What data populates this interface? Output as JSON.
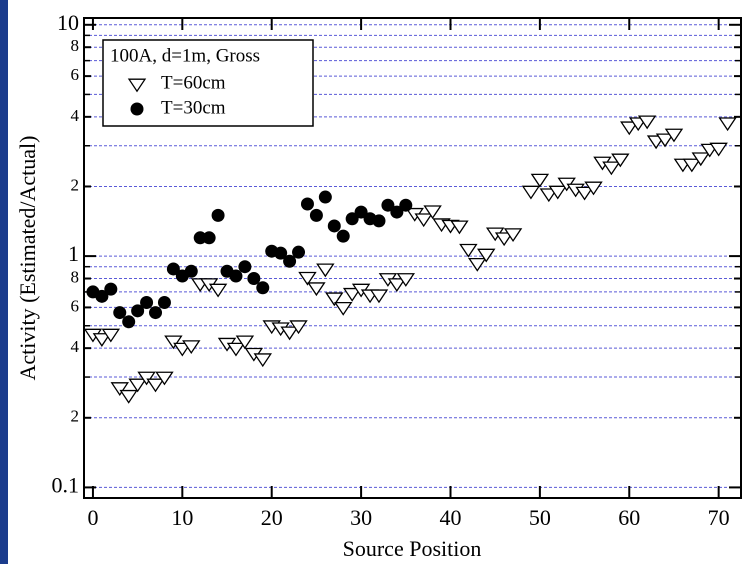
{
  "chart_data": {
    "type": "scatter",
    "xlabel": "Source Position",
    "ylabel": "Activity (Estimated/Actual)",
    "legend_title": "100A, d=1m, Gross",
    "legend": "upper left",
    "log_y": true,
    "grid": true,
    "xlim": [
      -1,
      72.5
    ],
    "xticks": [
      0,
      10,
      20,
      30,
      40,
      50,
      60,
      70
    ],
    "ylim": [
      0.09,
      10.7
    ],
    "yticks": [
      0.1,
      {
        "value": 0.2,
        "label": "2"
      },
      {
        "value": 0.4,
        "label": "4"
      },
      {
        "value": 0.6,
        "label": "6"
      },
      {
        "value": 0.8,
        "label": "8"
      },
      1,
      {
        "value": 2,
        "label": "2"
      },
      {
        "value": 4,
        "label": "4"
      },
      {
        "value": 6,
        "label": "6"
      },
      {
        "value": 8,
        "label": "8"
      },
      10
    ],
    "minor_yticks": [
      0.3,
      0.5,
      0.7,
      0.9,
      3,
      5,
      7,
      9
    ],
    "series": [
      {
        "name": "T=60cm",
        "marker": "triangle-down",
        "color": "#000000",
        "x": [
          0,
          1,
          2,
          3,
          4,
          5,
          6,
          7,
          8,
          9,
          10,
          11,
          12,
          13,
          14,
          15,
          16,
          17,
          18,
          19,
          20,
          21,
          22,
          23,
          24,
          25,
          26,
          27,
          28,
          29,
          30,
          31,
          32,
          33,
          34,
          35,
          36,
          37,
          38,
          39,
          40,
          41,
          42,
          43,
          44,
          45,
          46,
          47,
          49,
          50,
          51,
          52,
          53,
          54,
          55,
          56,
          57,
          58,
          59,
          60,
          61,
          62,
          63,
          64,
          65,
          66,
          67,
          68,
          69,
          70,
          71
        ],
        "values": [
          0.46,
          0.44,
          0.46,
          0.27,
          0.25,
          0.28,
          0.3,
          0.28,
          0.3,
          0.43,
          0.4,
          0.41,
          0.76,
          0.76,
          0.72,
          0.42,
          0.4,
          0.43,
          0.38,
          0.36,
          0.5,
          0.49,
          0.47,
          0.5,
          0.81,
          0.73,
          0.88,
          0.66,
          0.6,
          0.69,
          0.72,
          0.68,
          0.68,
          0.8,
          0.76,
          0.8,
          1.53,
          1.45,
          1.57,
          1.38,
          1.36,
          1.35,
          1.07,
          0.93,
          1.02,
          1.26,
          1.2,
          1.25,
          1.91,
          2.15,
          1.86,
          1.91,
          2.07,
          1.95,
          1.89,
          1.99,
          2.55,
          2.43,
          2.63,
          3.62,
          3.77,
          3.84,
          3.15,
          3.21,
          3.37,
          2.5,
          2.5,
          2.66,
          2.9,
          2.93,
          3.77
        ]
      },
      {
        "name": "T=30cm",
        "marker": "circle",
        "color": "#000000",
        "x": [
          0,
          1,
          2,
          3,
          4,
          5,
          6,
          7,
          8,
          9,
          10,
          11,
          12,
          13,
          14,
          15,
          16,
          17,
          18,
          19,
          20,
          21,
          22,
          23,
          24,
          25,
          26,
          27,
          28,
          29,
          30,
          31,
          32,
          33,
          34,
          35
        ],
        "values": [
          0.7,
          0.67,
          0.72,
          0.57,
          0.52,
          0.58,
          0.63,
          0.57,
          0.63,
          0.88,
          0.82,
          0.86,
          1.2,
          1.2,
          1.5,
          0.86,
          0.82,
          0.9,
          0.8,
          0.73,
          1.05,
          1.03,
          0.95,
          1.04,
          1.68,
          1.5,
          1.8,
          1.35,
          1.22,
          1.45,
          1.55,
          1.45,
          1.42,
          1.66,
          1.55,
          1.66
        ]
      }
    ]
  }
}
